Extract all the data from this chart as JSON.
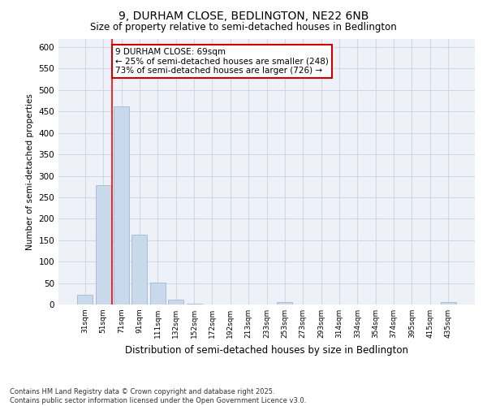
{
  "title_line1": "9, DURHAM CLOSE, BEDLINGTON, NE22 6NB",
  "title_line2": "Size of property relative to semi-detached houses in Bedlington",
  "xlabel": "Distribution of semi-detached houses by size in Bedlington",
  "ylabel": "Number of semi-detached properties",
  "categories": [
    "31sqm",
    "51sqm",
    "71sqm",
    "91sqm",
    "111sqm",
    "132sqm",
    "152sqm",
    "172sqm",
    "192sqm",
    "213sqm",
    "233sqm",
    "253sqm",
    "273sqm",
    "293sqm",
    "314sqm",
    "334sqm",
    "354sqm",
    "374sqm",
    "395sqm",
    "415sqm",
    "435sqm"
  ],
  "values": [
    22,
    278,
    462,
    163,
    52,
    12,
    1,
    0,
    0,
    0,
    0,
    5,
    0,
    0,
    0,
    0,
    0,
    0,
    0,
    0,
    5
  ],
  "bar_color": "#c9d9ec",
  "bar_edge_color": "#a0b8d0",
  "grid_color": "#d0d8e8",
  "background_color": "#eef2f8",
  "annotation_text": "9 DURHAM CLOSE: 69sqm\n← 25% of semi-detached houses are smaller (248)\n73% of semi-detached houses are larger (726) →",
  "annotation_box_color": "#cc0000",
  "property_line_x": 1.5,
  "ylim": [
    0,
    620
  ],
  "yticks": [
    0,
    50,
    100,
    150,
    200,
    250,
    300,
    350,
    400,
    450,
    500,
    550,
    600
  ],
  "footnote": "Contains HM Land Registry data © Crown copyright and database right 2025.\nContains public sector information licensed under the Open Government Licence v3.0."
}
